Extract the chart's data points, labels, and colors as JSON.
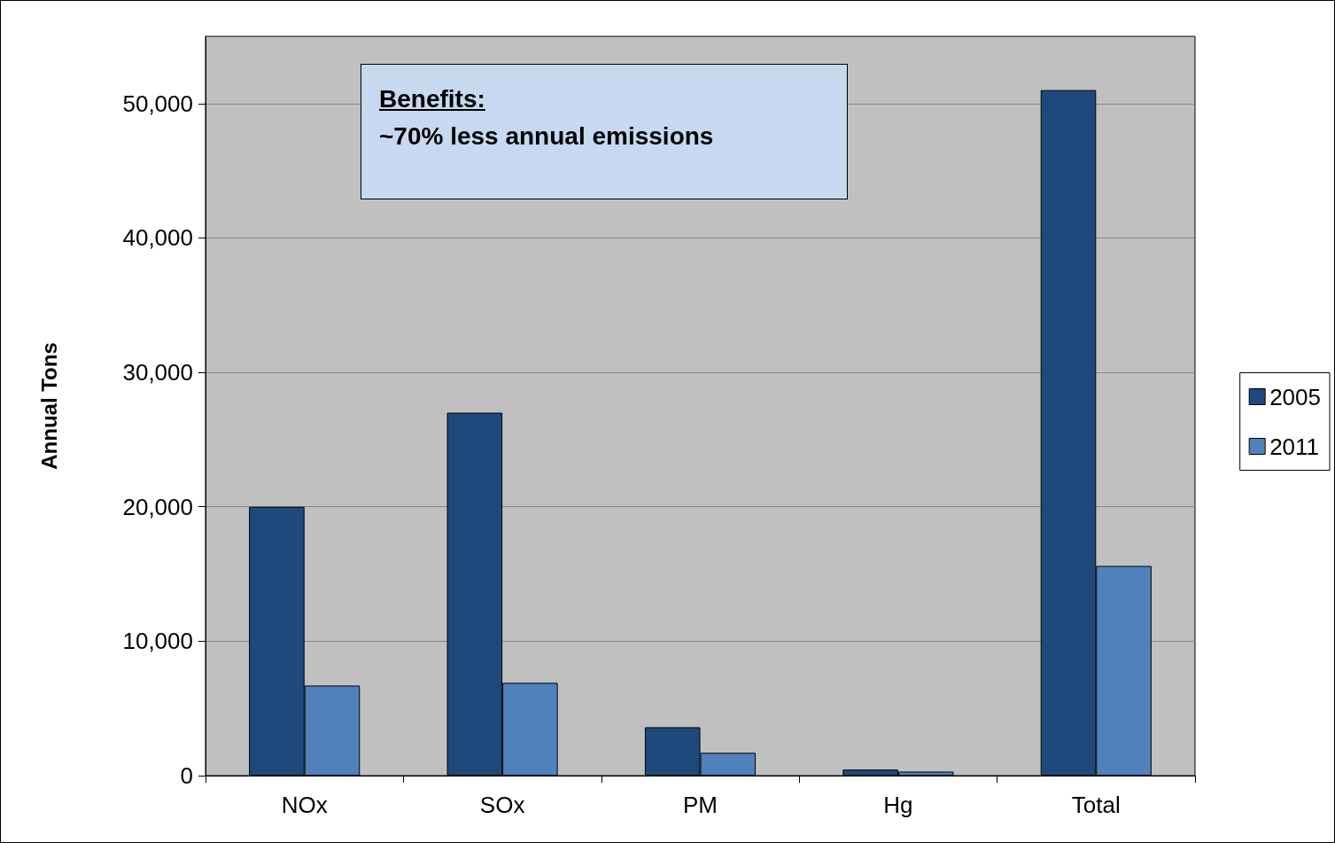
{
  "chart_data": {
    "type": "bar",
    "ylabel": "Annual Tons",
    "categories": [
      "NOx",
      "SOx",
      "PM",
      "Hg",
      "Total"
    ],
    "series": [
      {
        "name": "2005",
        "color": "#1f497d",
        "values": [
          20000,
          27000,
          3600,
          450,
          51000
        ]
      },
      {
        "name": "2011",
        "color": "#4f81bd",
        "values": [
          6700,
          6900,
          1700,
          300,
          15600
        ]
      }
    ],
    "ylim": [
      0,
      55000
    ],
    "yticks": [
      0,
      {
        "value": 10000,
        "label": "10,000"
      },
      {
        "value": 20000,
        "label": "20,000"
      },
      {
        "value": 30000,
        "label": "30,000"
      },
      {
        "value": 40000,
        "label": "40,000"
      },
      {
        "value": 50000,
        "label": "50,000"
      }
    ],
    "grid": "y",
    "legend": "right",
    "annotations": [
      "Benefits:",
      "~70% less annual emissions"
    ]
  }
}
